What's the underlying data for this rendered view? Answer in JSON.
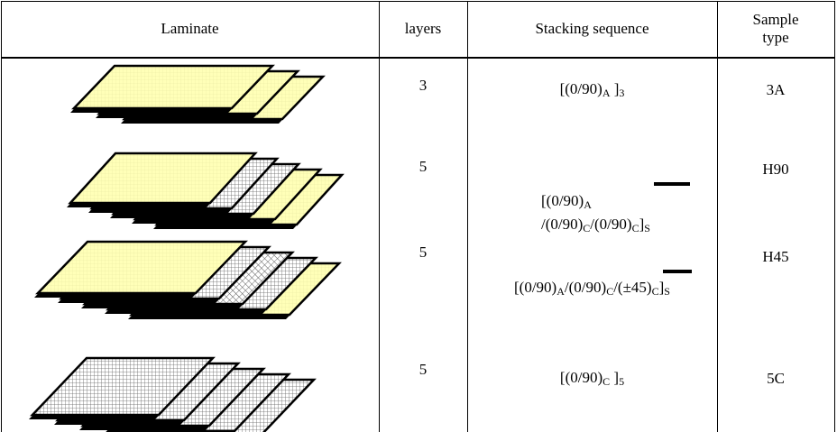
{
  "table": {
    "header": [
      "Laminate",
      "layers",
      "Stacking sequence",
      "Sample type"
    ],
    "rows": [
      {
        "layers": "3",
        "sequence": [
          "[(0/90)",
          {
            "sub": "A"
          },
          " ]",
          {
            "sub": "3"
          }
        ],
        "sample": "3A"
      },
      {
        "layers": "5",
        "sequence": [
          "[(0/90)",
          {
            "sub": "A"
          },
          " /(0/90)",
          {
            "sub": "C"
          },
          "/(0/90)",
          {
            "sub": "C"
          },
          "]",
          {
            "sub": "S"
          }
        ],
        "sample": "H90"
      },
      {
        "layers": "5",
        "sequence": [
          "[(0/90)",
          {
            "sub": "A"
          },
          "/(0/90)",
          {
            "sub": "C"
          },
          "/(±45)",
          {
            "sub": "C"
          },
          "]",
          {
            "sub": "S"
          }
        ],
        "sample": "H45"
      },
      {
        "layers": "5",
        "sequence": [
          "[(0/90)",
          {
            "sub": "C"
          },
          " ]",
          {
            "sub": "5"
          }
        ],
        "sample": "5C"
      }
    ]
  }
}
